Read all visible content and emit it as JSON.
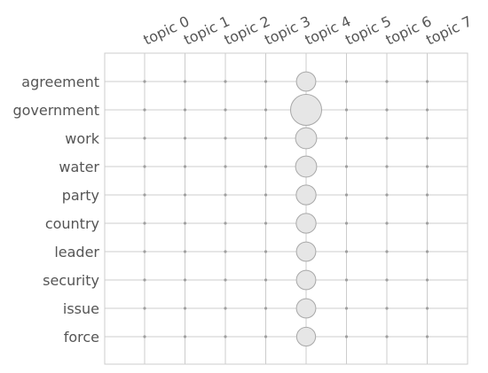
{
  "chart_data": {
    "type": "scatter",
    "title": "",
    "xlabel": "",
    "ylabel": "",
    "x_categories": [
      "topic 0",
      "topic 1",
      "topic 2",
      "topic 3",
      "topic 4",
      "topic 5",
      "topic 6",
      "topic 7"
    ],
    "y_categories": [
      "agreement",
      "government",
      "work",
      "water",
      "party",
      "country",
      "leader",
      "security",
      "issue",
      "force"
    ],
    "x_axis_position": "top",
    "grid": true,
    "legend": "none",
    "series": [
      {
        "topic": "topic 4",
        "values": [
          0.021,
          0.054,
          0.025,
          0.025,
          0.022,
          0.022,
          0.021,
          0.021,
          0.021,
          0.02
        ]
      }
    ],
    "other_topics_value": 0.0,
    "colors": {
      "bubble_fill": "#e6e6e6",
      "bubble_stroke": "#a8a8a8",
      "grid": "#cccccc",
      "text": "#555555"
    }
  }
}
